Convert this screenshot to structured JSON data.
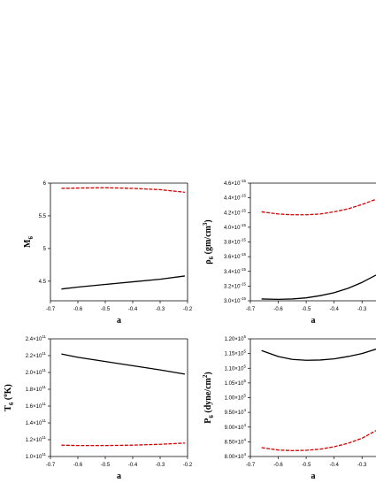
{
  "chart_data": [
    {
      "type": "line",
      "xlabel": "a",
      "ylabel": "M",
      "ylabel_sub": "6",
      "xlim": [
        -0.7,
        -0.2
      ],
      "ylim": [
        4.2,
        6
      ],
      "xticks": [
        -0.7,
        -0.6,
        -0.5,
        -0.4,
        -0.3,
        -0.2
      ],
      "xtick_labels": [
        "-0.7",
        "-0.6",
        "-0.5",
        "-0.4",
        "-0.3",
        "-0.2"
      ],
      "yticks": [
        4.5,
        5,
        5.5,
        6
      ],
      "ytick_labels": [
        "4.5",
        "5",
        "5.5",
        "6"
      ],
      "series": [
        {
          "style": "solid",
          "color": "#000000",
          "x": [
            -0.66,
            -0.6,
            -0.5,
            -0.4,
            -0.3,
            -0.21
          ],
          "y": [
            4.38,
            4.41,
            4.45,
            4.49,
            4.53,
            4.58
          ]
        },
        {
          "style": "dashed",
          "color": "#d40000",
          "x": [
            -0.66,
            -0.6,
            -0.5,
            -0.4,
            -0.3,
            -0.21
          ],
          "y": [
            5.92,
            5.925,
            5.93,
            5.92,
            5.9,
            5.86
          ]
        }
      ]
    },
    {
      "type": "line",
      "xlabel": "a",
      "ylabel": "ρ",
      "ylabel_sub": "6",
      "ylabel_rest": " (gm/cm",
      "ylabel_sup": "3",
      "ylabel_end": ")",
      "xlim": [
        -0.7,
        -0.25
      ],
      "ylim": [
        3.0,
        4.6
      ],
      "xticks": [
        -0.7,
        -0.6,
        -0.5,
        -0.4,
        -0.3
      ],
      "xtick_labels": [
        "-0.7",
        "-0.6",
        "-0.5",
        "-0.4",
        "-0.3"
      ],
      "yticks": [
        3.0,
        3.2,
        3.4,
        3.6,
        3.8,
        4.0,
        4.2,
        4.4,
        4.6
      ],
      "ytick_labels": [
        "3.0×10",
        "3.2×10",
        "3.4×10",
        "3.6×10",
        "3.8×10",
        "4.0×10",
        "4.2×10",
        "4.4×10",
        "4.6×10"
      ],
      "ytick_exp": "-15",
      "series": [
        {
          "style": "solid",
          "color": "#000000",
          "x": [
            -0.66,
            -0.6,
            -0.55,
            -0.5,
            -0.45,
            -0.4,
            -0.35,
            -0.3,
            -0.25
          ],
          "y": [
            3.025,
            3.02,
            3.025,
            3.04,
            3.07,
            3.11,
            3.17,
            3.25,
            3.35
          ]
        },
        {
          "style": "dashed",
          "color": "#d40000",
          "x": [
            -0.66,
            -0.6,
            -0.55,
            -0.5,
            -0.45,
            -0.4,
            -0.35,
            -0.3,
            -0.25
          ],
          "y": [
            4.21,
            4.18,
            4.17,
            4.17,
            4.18,
            4.21,
            4.25,
            4.31,
            4.38
          ]
        }
      ]
    },
    {
      "type": "line",
      "xlabel": "a",
      "ylabel": "T",
      "ylabel_sub": "6",
      "ylabel_rest": " (",
      "ylabel_sup": "o",
      "ylabel_end": "K)",
      "xlim": [
        -0.7,
        -0.2
      ],
      "ylim": [
        1.0,
        2.4
      ],
      "xticks": [
        -0.7,
        -0.6,
        -0.5,
        -0.4,
        -0.3,
        -0.2
      ],
      "xtick_labels": [
        "-0.7",
        "-0.6",
        "-0.5",
        "-0.4",
        "-0.3",
        "-0.2"
      ],
      "yticks": [
        1.0,
        1.2,
        1.4,
        1.6,
        1.8,
        2.0,
        2.2,
        2.4
      ],
      "ytick_labels": [
        "1.0×10",
        "1.2×10",
        "1.4×10",
        "1.6×10",
        "1.8×10",
        "2.0×10",
        "2.2×10",
        "2.4×10"
      ],
      "ytick_exp": "11",
      "series": [
        {
          "style": "solid",
          "color": "#000000",
          "x": [
            -0.66,
            -0.6,
            -0.5,
            -0.4,
            -0.3,
            -0.21
          ],
          "y": [
            2.22,
            2.18,
            2.13,
            2.08,
            2.03,
            1.98
          ]
        },
        {
          "style": "dashed",
          "color": "#d40000",
          "x": [
            -0.66,
            -0.6,
            -0.5,
            -0.4,
            -0.3,
            -0.21
          ],
          "y": [
            1.135,
            1.13,
            1.13,
            1.135,
            1.145,
            1.16
          ]
        }
      ]
    },
    {
      "type": "line",
      "xlabel": "a",
      "ylabel": "P",
      "ylabel_sub": "6",
      "ylabel_rest": " (dyne/cm",
      "ylabel_sup": "2",
      "ylabel_end": ")",
      "xlim": [
        -0.7,
        -0.25
      ],
      "ylim": [
        8.0,
        12.0
      ],
      "xticks": [
        -0.7,
        -0.6,
        -0.5,
        -0.4,
        -0.3
      ],
      "xtick_labels": [
        "-0.7",
        "-0.6",
        "-0.5",
        "-0.4",
        "-0.3"
      ],
      "yticks": [
        8.0,
        8.5,
        9.0,
        9.5,
        10.0,
        10.5,
        11.0,
        11.5,
        12.0
      ],
      "ytick_labels": [
        "8.00×10",
        "8.50×10",
        "9.00×10",
        "9.50×10",
        "1.00×10",
        "1.05×10",
        "1.10×10",
        "1.15×10",
        "1.20×10"
      ],
      "ytick_exps": [
        "4",
        "4",
        "4",
        "4",
        "5",
        "5",
        "5",
        "5",
        "5"
      ],
      "series": [
        {
          "style": "solid",
          "color": "#000000",
          "x": [
            -0.66,
            -0.6,
            -0.55,
            -0.5,
            -0.45,
            -0.4,
            -0.35,
            -0.3,
            -0.25
          ],
          "y": [
            11.6,
            11.4,
            11.3,
            11.27,
            11.28,
            11.32,
            11.4,
            11.5,
            11.65
          ]
        },
        {
          "style": "dashed",
          "color": "#d40000",
          "x": [
            -0.66,
            -0.6,
            -0.55,
            -0.5,
            -0.45,
            -0.4,
            -0.35,
            -0.3,
            -0.25
          ],
          "y": [
            8.3,
            8.22,
            8.2,
            8.21,
            8.25,
            8.33,
            8.45,
            8.62,
            8.88
          ]
        }
      ]
    }
  ]
}
